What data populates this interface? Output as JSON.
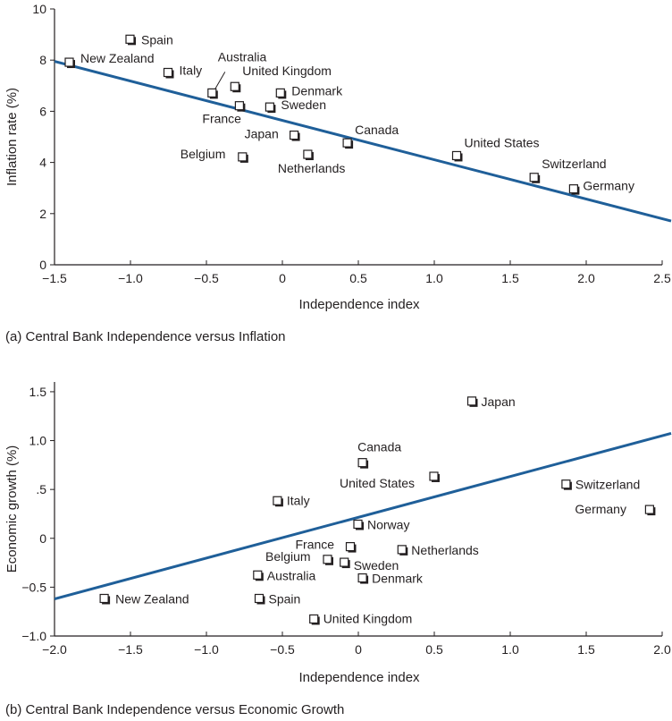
{
  "chart_data": [
    {
      "type": "scatter",
      "xlabel": "Independence index",
      "ylabel": "Inflation rate (%)",
      "caption": "(a)  Central Bank Independence versus Inflation",
      "xlim": [
        -1.5,
        2.5
      ],
      "ylim": [
        0,
        10
      ],
      "x_ticks": [
        -1.5,
        -1.0,
        -0.5,
        0,
        0.5,
        1.0,
        1.5,
        2.0,
        2.5
      ],
      "x_tick_labels": [
        "−1.5",
        "−1.0",
        "−0.5",
        "0",
        "0.5",
        "1.0",
        "1.5",
        "2.0",
        "2.5"
      ],
      "y_ticks": [
        0,
        2,
        4,
        6,
        8,
        10
      ],
      "y_tick_labels": [
        "0",
        "2",
        "4",
        "6",
        "8",
        "10"
      ],
      "grid": false,
      "points": [
        {
          "label": "Spain",
          "x": -1.0,
          "y": 8.8
        },
        {
          "label": "New Zealand",
          "x": -1.4,
          "y": 7.9
        },
        {
          "label": "Italy",
          "x": -0.75,
          "y": 7.5
        },
        {
          "label": "Australia",
          "x": -0.46,
          "y": 6.7
        },
        {
          "label": "United Kingdom",
          "x": -0.31,
          "y": 6.95
        },
        {
          "label": "Denmark",
          "x": -0.01,
          "y": 6.7
        },
        {
          "label": "France",
          "x": -0.28,
          "y": 6.2
        },
        {
          "label": "Sweden",
          "x": -0.08,
          "y": 6.15
        },
        {
          "label": "Japan",
          "x": 0.08,
          "y": 5.05
        },
        {
          "label": "Canada",
          "x": 0.43,
          "y": 4.75
        },
        {
          "label": "Belgium",
          "x": -0.26,
          "y": 4.2
        },
        {
          "label": "Netherlands",
          "x": 0.17,
          "y": 4.3
        },
        {
          "label": "United States",
          "x": 1.15,
          "y": 4.25
        },
        {
          "label": "Switzerland",
          "x": 1.66,
          "y": 3.4
        },
        {
          "label": "Germany",
          "x": 1.92,
          "y": 2.95
        }
      ],
      "trendline": [
        {
          "x": -1.5,
          "y": 7.95
        },
        {
          "x": 2.5,
          "y": 1.8
        }
      ]
    },
    {
      "type": "scatter",
      "xlabel": "Independence index",
      "ylabel": "Economic growth (%)",
      "caption": "(b)  Central Bank Independence versus Economic Growth",
      "xlim": [
        -2.0,
        2.0
      ],
      "ylim": [
        -1.0,
        1.6
      ],
      "x_ticks": [
        -2.0,
        -1.5,
        -1.0,
        -0.5,
        0,
        0.5,
        1.0,
        1.5,
        2.0
      ],
      "x_tick_labels": [
        "−2.0",
        "−1.5",
        "−1.0",
        "−0.5",
        "0",
        "0.5",
        "1.0",
        "1.5",
        "2.0"
      ],
      "y_ticks": [
        -1.0,
        -0.5,
        0,
        0.5,
        1.0,
        1.5
      ],
      "y_tick_labels": [
        "−1.0",
        "−0.5",
        "0",
        ".5",
        "1.0",
        "1.5"
      ],
      "grid": false,
      "points": [
        {
          "label": "Japan",
          "x": 0.75,
          "y": 1.4
        },
        {
          "label": "Canada",
          "x": 0.03,
          "y": 0.77
        },
        {
          "label": "United States",
          "x": 0.5,
          "y": 0.63
        },
        {
          "label": "Switzerland",
          "x": 1.37,
          "y": 0.55
        },
        {
          "label": "Germany",
          "x": 1.92,
          "y": 0.29
        },
        {
          "label": "Italy",
          "x": -0.53,
          "y": 0.38
        },
        {
          "label": "Norway",
          "x": 0.0,
          "y": 0.14
        },
        {
          "label": "France",
          "x": -0.05,
          "y": -0.09
        },
        {
          "label": "Netherlands",
          "x": 0.29,
          "y": -0.12
        },
        {
          "label": "Belgium",
          "x": -0.2,
          "y": -0.22
        },
        {
          "label": "Sweden",
          "x": -0.09,
          "y": -0.25
        },
        {
          "label": "Australia",
          "x": -0.66,
          "y": -0.38
        },
        {
          "label": "Denmark",
          "x": 0.03,
          "y": -0.41
        },
        {
          "label": "New Zealand",
          "x": -1.67,
          "y": -0.62
        },
        {
          "label": "Spain",
          "x": -0.65,
          "y": -0.62
        },
        {
          "label": "United Kingdom",
          "x": -0.29,
          "y": -0.83
        }
      ],
      "trendline": [
        {
          "x": -2.0,
          "y": -0.62
        },
        {
          "x": 2.0,
          "y": 1.05
        }
      ]
    }
  ]
}
